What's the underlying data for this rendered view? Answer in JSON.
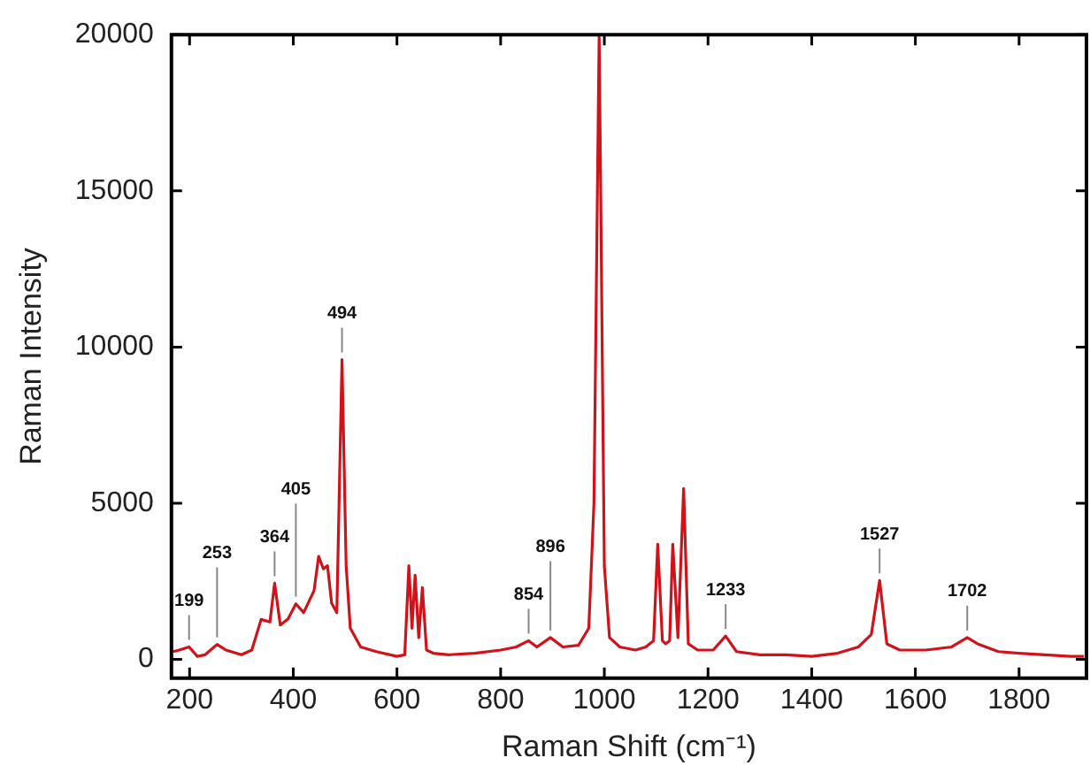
{
  "chart_data": {
    "type": "line",
    "xlabel": "Raman Shift (cm⁻¹)",
    "ylabel": "Raman Intensity",
    "xlim": [
      165,
      1930
    ],
    "xticks": [
      200,
      400,
      600,
      800,
      1000,
      1200,
      1400,
      1600,
      1800
    ],
    "ylim": [
      -600,
      20000
    ],
    "yticks": [
      0,
      5000,
      10000,
      15000,
      20000
    ],
    "grid": false,
    "legend": false,
    "marker": "none",
    "line_style": "solid",
    "series": [
      {
        "color": "#d0121b",
        "x": [
          168,
          180,
          199,
          215,
          230,
          253,
          270,
          300,
          320,
          338,
          355,
          364,
          375,
          390,
          405,
          420,
          440,
          449,
          458,
          466,
          474,
          484,
          494,
          502,
          510,
          530,
          560,
          600,
          615,
          623,
          629,
          635,
          642,
          649,
          657,
          670,
          700,
          750,
          800,
          830,
          854,
          870,
          896,
          920,
          950,
          970,
          980,
          990,
          1000,
          1010,
          1030,
          1060,
          1080,
          1095,
          1103,
          1112,
          1118,
          1126,
          1132,
          1142,
          1153,
          1162,
          1180,
          1210,
          1234,
          1255,
          1300,
          1350,
          1400,
          1450,
          1490,
          1515,
          1531,
          1545,
          1570,
          1620,
          1670,
          1700,
          1720,
          1760,
          1800,
          1850,
          1900,
          1925
        ],
        "values": [
          250,
          300,
          400,
          100,
          150,
          480,
          300,
          150,
          300,
          1280,
          1200,
          2440,
          1100,
          1300,
          1780,
          1500,
          2200,
          3300,
          2900,
          3000,
          1800,
          1500,
          9600,
          3000,
          1000,
          400,
          250,
          100,
          150,
          3000,
          1000,
          2700,
          700,
          2300,
          300,
          200,
          150,
          200,
          300,
          400,
          600,
          400,
          700,
          400,
          450,
          1000,
          5000,
          20000,
          3000,
          700,
          400,
          300,
          400,
          600,
          3690,
          600,
          500,
          600,
          3690,
          700,
          5470,
          500,
          300,
          300,
          750,
          250,
          150,
          150,
          100,
          200,
          400,
          800,
          2530,
          500,
          300,
          300,
          400,
          700,
          500,
          250,
          200,
          150,
          100,
          100
        ]
      }
    ],
    "annotations": [
      {
        "text": "199",
        "x": 199,
        "y": 400
      },
      {
        "text": "253",
        "x": 253,
        "y": 480
      },
      {
        "text": "364",
        "x": 364,
        "y": 2440
      },
      {
        "text": "405",
        "x": 405,
        "y": 1780
      },
      {
        "text": "494",
        "x": 494,
        "y": 9600
      },
      {
        "text": "854",
        "x": 854,
        "y": 600
      },
      {
        "text": "896",
        "x": 896,
        "y": 700
      },
      {
        "text": "1233",
        "x": 1234,
        "y": 750
      },
      {
        "text": "1527",
        "x": 1531,
        "y": 2530
      },
      {
        "text": "1702",
        "x": 1700,
        "y": 700
      }
    ]
  }
}
